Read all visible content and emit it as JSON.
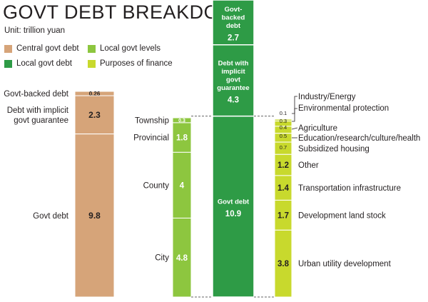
{
  "title": "GOVT DEBT BREAKDOWN",
  "unit": "Unit: trillion yuan",
  "legend": [
    {
      "label": "Central govt debt",
      "color": "#d6a479"
    },
    {
      "label": "Local govt levels",
      "color": "#8dc63f"
    },
    {
      "label": "Local govt debt",
      "color": "#2e9b46"
    },
    {
      "label": "Purposes of finance",
      "color": "#c8d92d"
    }
  ],
  "chart_data": [
    {
      "type": "bar",
      "title": "Central govt debt",
      "segments": [
        {
          "label": "Govt-backed debt",
          "value": 0.26,
          "display": "0.26"
        },
        {
          "label": "Debt with  implicit govt guarantee",
          "label_lines": [
            "Debt with  implicit",
            "govt guarantee"
          ],
          "value": 2.3,
          "display": "2.3"
        },
        {
          "label": "Govt debt",
          "value": 9.8,
          "display": "9.8"
        }
      ]
    },
    {
      "type": "bar",
      "title": "Local govt levels",
      "segments": [
        {
          "label": "Township",
          "value": 0.3,
          "display": "0.3"
        },
        {
          "label": "Provincial",
          "value": 1.8,
          "display": "1.8"
        },
        {
          "label": "County",
          "value": 4,
          "display": "4"
        },
        {
          "label": "City",
          "value": 4.8,
          "display": "4.8"
        }
      ]
    },
    {
      "type": "bar",
      "title": "Local govt debt",
      "segments": [
        {
          "label": "Govt-backed debt",
          "label_lines": [
            "Govt-",
            "backed",
            "debt"
          ],
          "value": 2.7,
          "display": "2.7"
        },
        {
          "label": "Debt with implicit govt guarantee",
          "label_lines": [
            "Debt with",
            "implicit",
            "govt",
            "guarantee"
          ],
          "value": 4.3,
          "display": "4.3"
        },
        {
          "label": "Govt debt",
          "label_lines": [
            "Govt debt"
          ],
          "value": 10.9,
          "display": "10.9"
        }
      ]
    },
    {
      "type": "bar",
      "title": "Purposes of finance",
      "segments": [
        {
          "label": "Industry/Energy",
          "value": 0.1,
          "display": "0.1"
        },
        {
          "label": "Environmental protection",
          "value": 0.3,
          "display": "0.3"
        },
        {
          "label": "Agriculture",
          "value": 0.4,
          "display": "0.4"
        },
        {
          "label": "Education/research/culture/health",
          "value": 0.5,
          "display": "0.5"
        },
        {
          "label": "Subsidized housing",
          "value": 0.7,
          "display": "0.7"
        },
        {
          "label": "Other",
          "value": 1.2,
          "display": "1.2"
        },
        {
          "label": "Transportation infrastructure",
          "value": 1.4,
          "display": "1.4"
        },
        {
          "label": "Development land stock",
          "value": 1.7,
          "display": "1.7"
        },
        {
          "label": "Urban utility development",
          "value": 3.8,
          "display": "3.8"
        }
      ]
    }
  ]
}
